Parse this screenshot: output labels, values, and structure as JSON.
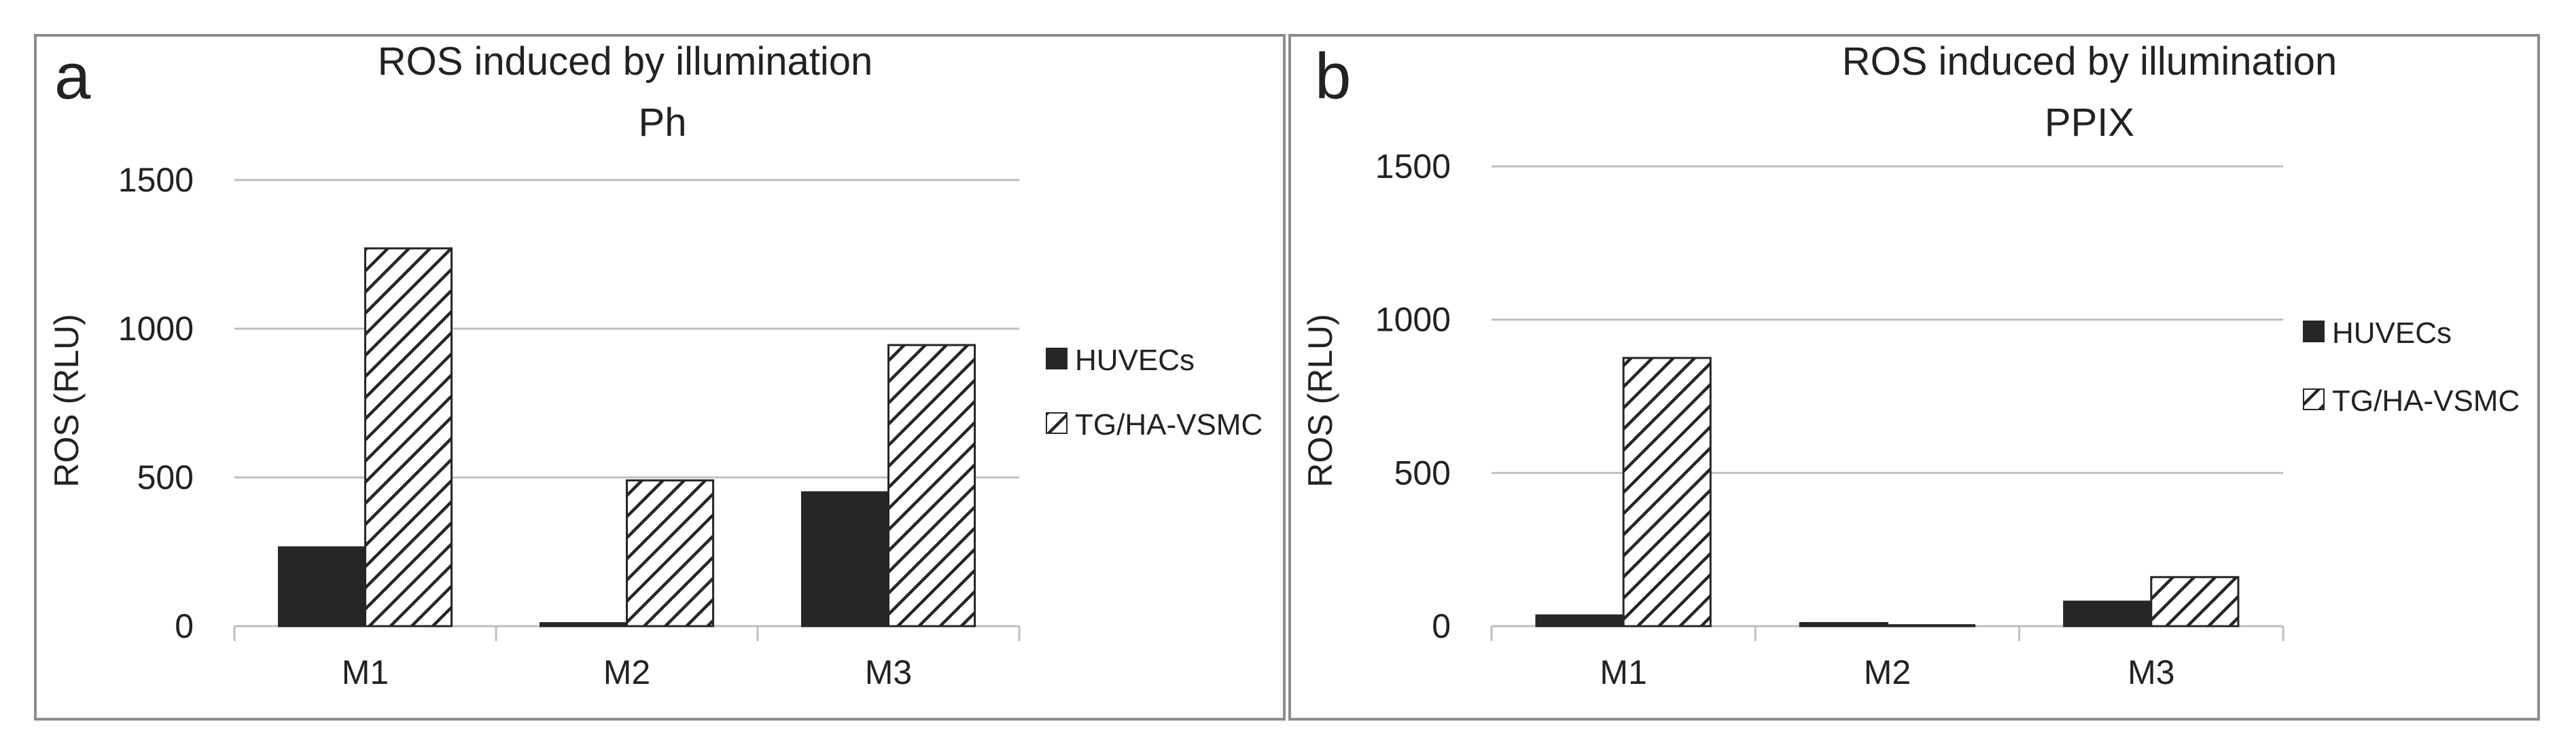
{
  "colors": {
    "huvecs": "#262626",
    "tg_fill": "#ffffff",
    "hatch": "#262626",
    "frame": "#8c8c8c",
    "grid": "#bfbfbf"
  },
  "chart_data": [
    {
      "panel_letter": "a",
      "type": "bar",
      "title": "ROS induced by illumination",
      "subtitle": "Ph",
      "xlabel": "",
      "ylabel": "ROS (RLU)",
      "ylim": [
        0,
        1500
      ],
      "yticks": [
        "0",
        "500",
        "1000",
        "1500"
      ],
      "categories": [
        "M1",
        "M2",
        "M3"
      ],
      "series": [
        {
          "name": "HUVECs",
          "values": [
            265,
            10,
            450
          ],
          "style": "solid"
        },
        {
          "name": "TG/HA-VSMC",
          "values": [
            1270,
            490,
            945
          ],
          "style": "hatched"
        }
      ],
      "legend": "right",
      "grid": true
    },
    {
      "panel_letter": "b",
      "type": "bar",
      "title": "ROS induced by illumination",
      "subtitle": "PPIX",
      "xlabel": "",
      "ylabel": "ROS (RLU)",
      "ylim": [
        0,
        1500
      ],
      "yticks": [
        "0",
        "500",
        "1000",
        "1500"
      ],
      "categories": [
        "M1",
        "M2",
        "M3"
      ],
      "series": [
        {
          "name": "HUVECs",
          "values": [
            35,
            10,
            80
          ],
          "style": "solid"
        },
        {
          "name": "TG/HA-VSMC",
          "values": [
            875,
            3,
            160
          ],
          "style": "hatched"
        }
      ],
      "legend": "right",
      "grid": true
    }
  ]
}
